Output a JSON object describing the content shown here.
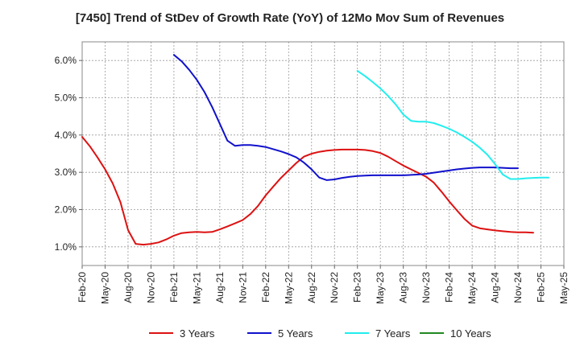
{
  "chart_data": {
    "type": "line",
    "title": "[7450]  Trend of StDev of Growth Rate (YoY) of 12Mo Mov Sum of Revenues",
    "xlabel": "",
    "ylabel": "",
    "ylim": [
      0.5,
      6.5
    ],
    "grid": true,
    "legend_position": "bottom",
    "y_ticks": [
      {
        "value": 1.0,
        "label": "1.0%"
      },
      {
        "value": 2.0,
        "label": "2.0%"
      },
      {
        "value": 3.0,
        "label": "3.0%"
      },
      {
        "value": 4.0,
        "label": "4.0%"
      },
      {
        "value": 5.0,
        "label": "5.0%"
      },
      {
        "value": 6.0,
        "label": "6.0%"
      }
    ],
    "x_ticks": [
      {
        "index": 0,
        "label": "Feb-20"
      },
      {
        "index": 3,
        "label": "May-20"
      },
      {
        "index": 6,
        "label": "Aug-20"
      },
      {
        "index": 9,
        "label": "Nov-20"
      },
      {
        "index": 12,
        "label": "Feb-21"
      },
      {
        "index": 15,
        "label": "May-21"
      },
      {
        "index": 18,
        "label": "Aug-21"
      },
      {
        "index": 21,
        "label": "Nov-21"
      },
      {
        "index": 24,
        "label": "Feb-22"
      },
      {
        "index": 27,
        "label": "May-22"
      },
      {
        "index": 30,
        "label": "Aug-22"
      },
      {
        "index": 33,
        "label": "Nov-22"
      },
      {
        "index": 36,
        "label": "Feb-23"
      },
      {
        "index": 39,
        "label": "May-23"
      },
      {
        "index": 42,
        "label": "Aug-23"
      },
      {
        "index": 45,
        "label": "Nov-23"
      },
      {
        "index": 48,
        "label": "Feb-24"
      },
      {
        "index": 51,
        "label": "May-24"
      },
      {
        "index": 54,
        "label": "Aug-24"
      },
      {
        "index": 57,
        "label": "Nov-24"
      },
      {
        "index": 60,
        "label": "Feb-25"
      },
      {
        "index": 63,
        "label": "May-25"
      }
    ],
    "x_count": 64,
    "series": [
      {
        "name": "3 Years",
        "color": "#dd1111",
        "start_index": 0,
        "values": [
          3.95,
          3.7,
          3.4,
          3.08,
          2.7,
          2.2,
          1.45,
          1.08,
          1.06,
          1.08,
          1.12,
          1.2,
          1.3,
          1.37,
          1.39,
          1.4,
          1.39,
          1.4,
          1.47,
          1.55,
          1.63,
          1.72,
          1.88,
          2.1,
          2.38,
          2.62,
          2.85,
          3.05,
          3.25,
          3.42,
          3.5,
          3.55,
          3.58,
          3.6,
          3.61,
          3.61,
          3.61,
          3.6,
          3.57,
          3.52,
          3.42,
          3.3,
          3.18,
          3.08,
          2.98,
          2.88,
          2.72,
          2.48,
          2.22,
          1.98,
          1.75,
          1.57,
          1.5,
          1.47,
          1.44,
          1.42,
          1.4,
          1.39,
          1.39,
          1.38
        ]
      },
      {
        "name": "5 Years",
        "color": "#1111cc",
        "start_index": 12,
        "values": [
          6.15,
          5.98,
          5.75,
          5.48,
          5.15,
          4.75,
          4.3,
          3.85,
          3.71,
          3.73,
          3.73,
          3.71,
          3.68,
          3.62,
          3.56,
          3.49,
          3.4,
          3.26,
          3.08,
          2.86,
          2.79,
          2.81,
          2.85,
          2.88,
          2.9,
          2.91,
          2.92,
          2.92,
          2.92,
          2.92,
          2.92,
          2.93,
          2.94,
          2.96,
          2.99,
          3.02,
          3.05,
          3.08,
          3.1,
          3.12,
          3.13,
          3.13,
          3.13,
          3.12,
          3.11,
          3.11
        ]
      },
      {
        "name": "7 Years",
        "color": "#22eeee",
        "start_index": 36,
        "values": [
          5.72,
          5.58,
          5.42,
          5.25,
          5.05,
          4.82,
          4.55,
          4.38,
          4.36,
          4.36,
          4.32,
          4.25,
          4.17,
          4.07,
          3.95,
          3.82,
          3.66,
          3.47,
          3.22,
          2.94,
          2.82,
          2.82,
          2.84,
          2.85,
          2.86,
          2.86
        ]
      },
      {
        "name": "10 Years",
        "color": "#228822",
        "start_index": 0,
        "values": []
      }
    ]
  }
}
